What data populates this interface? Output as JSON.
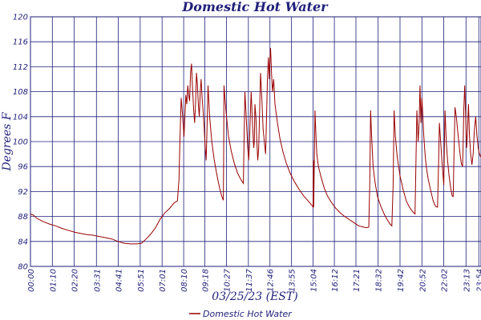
{
  "chart_data": {
    "type": "line",
    "title": "Domestic Hot Water",
    "xlabel": "03/25/23 (EST)",
    "ylabel": "Degrees F",
    "ylim": [
      80,
      120
    ],
    "yticks": [
      80,
      84,
      88,
      92,
      96,
      100,
      104,
      108,
      112,
      116,
      120
    ],
    "xlim": [
      0,
      1441
    ],
    "xticks": [
      {
        "t": 0,
        "label": "00:00"
      },
      {
        "t": 70,
        "label": "01:10"
      },
      {
        "t": 140,
        "label": "02:20"
      },
      {
        "t": 211,
        "label": "03:31"
      },
      {
        "t": 281,
        "label": "04:41"
      },
      {
        "t": 351,
        "label": "05:51"
      },
      {
        "t": 421,
        "label": "07:01"
      },
      {
        "t": 490,
        "label": "08:10"
      },
      {
        "t": 558,
        "label": "09:18"
      },
      {
        "t": 627,
        "label": "10:27"
      },
      {
        "t": 697,
        "label": "11:37"
      },
      {
        "t": 766,
        "label": "12:46"
      },
      {
        "t": 835,
        "label": "13:55"
      },
      {
        "t": 904,
        "label": "15:04"
      },
      {
        "t": 972,
        "label": "16:12"
      },
      {
        "t": 1041,
        "label": "17:21"
      },
      {
        "t": 1112,
        "label": "18:32"
      },
      {
        "t": 1182,
        "label": "19:42"
      },
      {
        "t": 1252,
        "label": "20:52"
      },
      {
        "t": 1322,
        "label": "22:02"
      },
      {
        "t": 1393,
        "label": "23:13"
      },
      {
        "t": 1434,
        "label": "23:54"
      }
    ],
    "grid": true,
    "legend": "bottom-center",
    "colors": {
      "series": "#990000",
      "grid": "#1f1f7a",
      "text": "#1f1f7a"
    },
    "series": [
      {
        "name": "Domestic Hot Water",
        "points": [
          [
            0,
            88.4
          ],
          [
            10,
            88.2
          ],
          [
            20,
            87.7
          ],
          [
            40,
            87.2
          ],
          [
            60,
            86.8
          ],
          [
            80,
            86.5
          ],
          [
            100,
            86.1
          ],
          [
            120,
            85.8
          ],
          [
            140,
            85.5
          ],
          [
            160,
            85.3
          ],
          [
            180,
            85.1
          ],
          [
            200,
            85.0
          ],
          [
            220,
            84.8
          ],
          [
            240,
            84.6
          ],
          [
            260,
            84.4
          ],
          [
            280,
            84.0
          ],
          [
            300,
            83.7
          ],
          [
            320,
            83.6
          ],
          [
            340,
            83.6
          ],
          [
            355,
            83.7
          ],
          [
            370,
            84.4
          ],
          [
            385,
            85.2
          ],
          [
            400,
            86.2
          ],
          [
            415,
            87.6
          ],
          [
            430,
            88.6
          ],
          [
            445,
            89.3
          ],
          [
            460,
            90.2
          ],
          [
            470,
            90.5
          ],
          [
            475,
            94
          ],
          [
            478,
            100
          ],
          [
            482,
            107
          ],
          [
            487,
            104
          ],
          [
            491,
            100.8
          ],
          [
            493,
            103
          ],
          [
            497,
            107.5
          ],
          [
            500,
            106
          ],
          [
            503,
            109
          ],
          [
            506,
            107.5
          ],
          [
            509,
            106.5
          ],
          [
            512,
            111
          ],
          [
            515,
            112.5
          ],
          [
            518,
            109
          ],
          [
            522,
            105
          ],
          [
            525,
            103
          ],
          [
            528,
            106
          ],
          [
            531,
            111
          ],
          [
            534,
            109
          ],
          [
            537,
            106
          ],
          [
            540,
            104
          ],
          [
            543,
            108
          ],
          [
            546,
            110
          ],
          [
            549,
            107
          ],
          [
            552,
            105
          ],
          [
            556,
            102
          ],
          [
            559,
            99
          ],
          [
            562,
            97
          ],
          [
            565,
            103
          ],
          [
            568,
            109
          ],
          [
            573,
            104
          ],
          [
            580,
            100
          ],
          [
            588,
            97
          ],
          [
            597,
            94.5
          ],
          [
            605,
            92.5
          ],
          [
            612,
            91.2
          ],
          [
            617,
            90.6
          ],
          [
            618,
            98
          ],
          [
            619,
            109
          ],
          [
            625,
            105
          ],
          [
            633,
            101
          ],
          [
            642,
            98.5
          ],
          [
            652,
            96.5
          ],
          [
            662,
            95
          ],
          [
            672,
            94
          ],
          [
            681,
            93.3
          ],
          [
            683,
            100
          ],
          [
            686,
            108
          ],
          [
            690,
            104
          ],
          [
            695,
            99
          ],
          [
            698,
            97
          ],
          [
            700,
            99
          ],
          [
            703,
            104
          ],
          [
            706,
            108
          ],
          [
            710,
            103
          ],
          [
            714,
            99
          ],
          [
            716,
            100
          ],
          [
            718,
            106
          ],
          [
            721,
            104
          ],
          [
            724,
            100
          ],
          [
            727,
            97
          ],
          [
            730,
            99
          ],
          [
            733,
            105
          ],
          [
            736,
            111
          ],
          [
            740,
            107
          ],
          [
            744,
            102
          ],
          [
            748,
            100
          ],
          [
            752,
            98
          ],
          [
            755,
            104
          ],
          [
            758,
            110
          ],
          [
            761,
            113.5
          ],
          [
            764,
            110
          ],
          [
            766,
            113
          ],
          [
            768,
            115
          ],
          [
            771,
            111
          ],
          [
            774,
            108
          ],
          [
            778,
            110
          ],
          [
            782,
            106
          ],
          [
            790,
            103
          ],
          [
            798,
            100.5
          ],
          [
            808,
            98.3
          ],
          [
            818,
            96.6
          ],
          [
            830,
            95
          ],
          [
            845,
            93.5
          ],
          [
            860,
            92.3
          ],
          [
            875,
            91.2
          ],
          [
            890,
            90.4
          ],
          [
            900,
            89.8
          ],
          [
            904,
            89.5
          ],
          [
            905,
            97
          ],
          [
            906,
            89.5
          ],
          [
            908,
            97
          ],
          [
            910,
            105
          ],
          [
            913,
            101
          ],
          [
            916,
            98
          ],
          [
            921,
            96
          ],
          [
            930,
            94.2
          ],
          [
            940,
            92.5
          ],
          [
            950,
            91.3
          ],
          [
            962,
            90.3
          ],
          [
            975,
            89.4
          ],
          [
            990,
            88.6
          ],
          [
            1005,
            88
          ],
          [
            1020,
            87.5
          ],
          [
            1035,
            87
          ],
          [
            1050,
            86.5
          ],
          [
            1065,
            86.3
          ],
          [
            1075,
            86.2
          ],
          [
            1082,
            86.3
          ],
          [
            1085,
            93
          ],
          [
            1088,
            105
          ],
          [
            1091,
            101
          ],
          [
            1096,
            96
          ],
          [
            1102,
            93.5
          ],
          [
            1110,
            91.2
          ],
          [
            1120,
            89.7
          ],
          [
            1132,
            88.3
          ],
          [
            1142,
            87.4
          ],
          [
            1150,
            86.8
          ],
          [
            1156,
            86.5
          ],
          [
            1160,
            93
          ],
          [
            1163,
            105
          ],
          [
            1167,
            101
          ],
          [
            1173,
            97.5
          ],
          [
            1182,
            94.5
          ],
          [
            1192,
            92.3
          ],
          [
            1202,
            90.5
          ],
          [
            1212,
            89.5
          ],
          [
            1222,
            88.8
          ],
          [
            1230,
            88.4
          ],
          [
            1233,
            97
          ],
          [
            1236,
            105
          ],
          [
            1240,
            100
          ],
          [
            1243,
            103
          ],
          [
            1246,
            109
          ],
          [
            1249,
            103
          ],
          [
            1252,
            107
          ],
          [
            1255,
            104
          ],
          [
            1258,
            101
          ],
          [
            1262,
            98
          ],
          [
            1266,
            96
          ],
          [
            1272,
            94
          ],
          [
            1280,
            92.2
          ],
          [
            1288,
            90.5
          ],
          [
            1296,
            89.6
          ],
          [
            1302,
            89.5
          ],
          [
            1305,
            96
          ],
          [
            1308,
            103
          ],
          [
            1312,
            100
          ],
          [
            1316,
            97
          ],
          [
            1319,
            95
          ],
          [
            1322,
            93
          ],
          [
            1324,
            100
          ],
          [
            1326,
            105
          ],
          [
            1330,
            100
          ],
          [
            1334,
            97
          ],
          [
            1339,
            94.5
          ],
          [
            1344,
            92.5
          ],
          [
            1349,
            91.3
          ],
          [
            1352,
            91.2
          ],
          [
            1355,
            99
          ],
          [
            1358,
            105.5
          ],
          [
            1362,
            104
          ],
          [
            1366,
            102
          ],
          [
            1370,
            100
          ],
          [
            1374,
            98
          ],
          [
            1378,
            96.5
          ],
          [
            1382,
            96
          ],
          [
            1384,
            100
          ],
          [
            1386,
            105
          ],
          [
            1389,
            109
          ],
          [
            1392,
            104
          ],
          [
            1395,
            99
          ],
          [
            1398,
            102
          ],
          [
            1401,
            106
          ],
          [
            1404,
            101
          ],
          [
            1408,
            98
          ],
          [
            1412,
            96.3
          ],
          [
            1416,
            98
          ],
          [
            1420,
            102
          ],
          [
            1424,
            104
          ],
          [
            1428,
            101
          ],
          [
            1432,
            99
          ],
          [
            1436,
            98
          ],
          [
            1441,
            97.5
          ]
        ]
      }
    ]
  }
}
